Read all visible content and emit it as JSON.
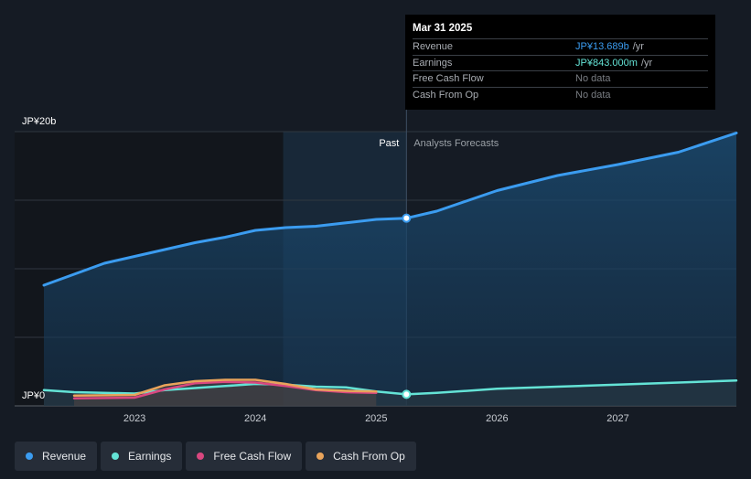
{
  "tooltip": {
    "date": "Mar 31 2025",
    "rows": [
      {
        "label": "Revenue",
        "value": "JP¥13.689b",
        "unit": "/yr"
      },
      {
        "label": "Earnings",
        "value": "JP¥843.000m",
        "unit": "/yr"
      },
      {
        "label": "Free Cash Flow",
        "value": "No data",
        "unit": ""
      },
      {
        "label": "Cash From Op",
        "value": "No data",
        "unit": ""
      }
    ]
  },
  "legend": [
    {
      "label": "Revenue",
      "color": "#3b9cf0"
    },
    {
      "label": "Earnings",
      "color": "#64e3d6"
    },
    {
      "label": "Free Cash Flow",
      "color": "#d9477f"
    },
    {
      "label": "Cash From Op",
      "color": "#e9a45b"
    }
  ],
  "chart_data": {
    "type": "line",
    "y_top_label": "JP¥20b",
    "y_bottom_label": "JP¥0",
    "past_label": "Past",
    "forecast_label": "Analysts Forecasts",
    "ylim": [
      0,
      20
    ],
    "xlim": [
      2022.25,
      2027.98
    ],
    "x_ticks": [
      2023,
      2024,
      2025,
      2026,
      2027
    ],
    "x_tick_labels": [
      "2023",
      "2024",
      "2025",
      "2026",
      "2027"
    ],
    "past_start": 2024.23,
    "divider_x": 2025.25,
    "grid": true,
    "series": [
      {
        "name": "Revenue",
        "color": "#3b9cf0",
        "highlight_x": 2025.25,
        "x": [
          2022.25,
          2022.75,
          2023.25,
          2023.5,
          2023.75,
          2024.0,
          2024.25,
          2024.5,
          2024.75,
          2025.0,
          2025.25,
          2025.5,
          2026.0,
          2026.5,
          2027.0,
          2027.5,
          2027.98
        ],
        "y": [
          8.8,
          10.4,
          11.4,
          11.9,
          12.3,
          12.8,
          13.0,
          13.1,
          13.35,
          13.6,
          13.689,
          14.2,
          15.7,
          16.8,
          17.6,
          18.5,
          19.9
        ]
      },
      {
        "name": "Earnings",
        "color": "#64e3d6",
        "highlight_x": 2025.25,
        "x": [
          2022.25,
          2022.5,
          2023.0,
          2023.25,
          2023.5,
          2023.75,
          2024.0,
          2024.25,
          2024.5,
          2024.75,
          2025.0,
          2025.25,
          2025.5,
          2026.0,
          2026.5,
          2027.0,
          2027.5,
          2027.98
        ],
        "y": [
          1.15,
          1.0,
          0.9,
          1.15,
          1.3,
          1.45,
          1.6,
          1.55,
          1.4,
          1.35,
          1.05,
          0.843,
          0.95,
          1.25,
          1.4,
          1.55,
          1.7,
          1.85
        ]
      },
      {
        "name": "Free Cash Flow",
        "color": "#d9477f",
        "x": [
          2022.5,
          2023.0,
          2023.25,
          2023.5,
          2023.75,
          2024.0,
          2024.25,
          2024.5,
          2024.75,
          2025.0
        ],
        "y": [
          0.55,
          0.6,
          1.2,
          1.65,
          1.75,
          1.7,
          1.45,
          1.15,
          1.0,
          0.95
        ]
      },
      {
        "name": "Cash From Op",
        "color": "#e9a45b",
        "x": [
          2022.5,
          2023.0,
          2023.25,
          2023.5,
          2023.75,
          2024.0,
          2024.25,
          2024.5,
          2024.75,
          2025.0
        ],
        "y": [
          0.75,
          0.8,
          1.5,
          1.8,
          1.9,
          1.9,
          1.6,
          1.2,
          1.1,
          1.05
        ]
      }
    ]
  }
}
